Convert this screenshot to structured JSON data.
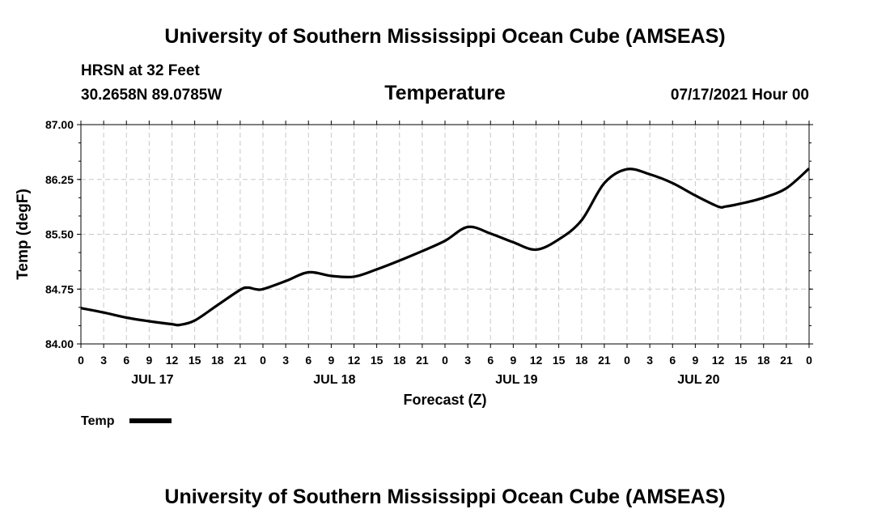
{
  "header": {
    "title": "University of Southern Mississippi Ocean Cube (AMSEAS)",
    "station": "HRSN at 32 Feet",
    "coords": "30.2658N  89.0785W",
    "datetime": "07/17/2021 Hour 00"
  },
  "footer": {
    "title": "University of Southern Mississippi Ocean Cube (AMSEAS)"
  },
  "chart_data": {
    "type": "line",
    "title": "Temperature",
    "xlabel": "Forecast (Z)",
    "ylabel": "Temp (degF)",
    "ylim": [
      84.0,
      87.0
    ],
    "yticks": [
      "84.00",
      "84.75",
      "85.50",
      "86.25",
      "87.00"
    ],
    "xlim_hours": [
      0,
      96
    ],
    "xtick_labels": [
      "0",
      "3",
      "6",
      "9",
      "12",
      "15",
      "18",
      "21",
      "0",
      "3",
      "6",
      "9",
      "12",
      "15",
      "18",
      "21",
      "0",
      "3",
      "6",
      "9",
      "12",
      "15",
      "18",
      "21",
      "0",
      "3",
      "6",
      "9",
      "12",
      "15",
      "18",
      "21",
      "0"
    ],
    "day_labels": [
      {
        "hour": 9,
        "label": "JUL 17"
      },
      {
        "hour": 33,
        "label": "JUL 18"
      },
      {
        "hour": 57,
        "label": "JUL 19"
      },
      {
        "hour": 81,
        "label": "JUL 20"
      }
    ],
    "grid": true,
    "legend": {
      "label": "Temp",
      "placement": "bottom-left"
    },
    "series": [
      {
        "name": "Temp",
        "x": [
          0,
          3,
          6,
          9,
          12,
          13,
          15,
          18,
          21,
          22,
          23,
          24,
          27,
          30,
          33,
          36,
          39,
          42,
          45,
          48,
          51,
          54,
          57,
          60,
          63,
          66,
          69,
          72,
          75,
          78,
          81,
          84,
          85,
          87,
          90,
          93,
          96
        ],
        "values": [
          84.49,
          84.43,
          84.36,
          84.31,
          84.27,
          84.26,
          84.32,
          84.53,
          84.74,
          84.77,
          84.75,
          84.75,
          84.86,
          84.98,
          84.93,
          84.92,
          85.02,
          85.14,
          85.27,
          85.41,
          85.6,
          85.51,
          85.39,
          85.29,
          85.43,
          85.69,
          86.2,
          86.39,
          86.32,
          86.2,
          86.03,
          85.88,
          85.88,
          85.92,
          86.0,
          86.13,
          86.4
        ]
      }
    ]
  }
}
